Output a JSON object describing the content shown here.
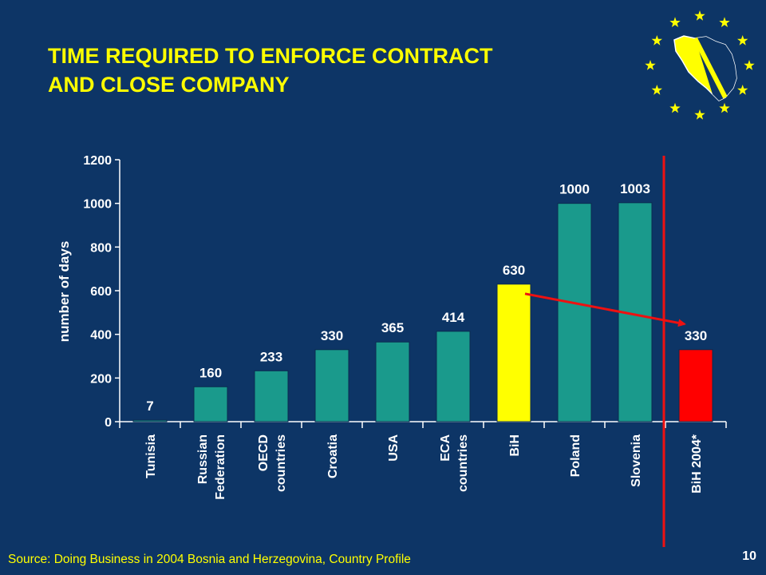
{
  "slide": {
    "title_line1": "TIME REQUIRED TO ENFORCE CONTRACT",
    "title_line2": "AND CLOSE COMPANY",
    "source": "Source: Doing Business in 2004 Bosnia and Herzegovina, Country Profile",
    "page_number": "10"
  },
  "colors": {
    "background": "#0d3566",
    "title": "#ffff00",
    "bar_default": "#1a9a8c",
    "bar_bih": "#ffff00",
    "bar_bih_2004": "#ff0000",
    "arrow": "#ee1111",
    "axis_text": "#ffffff",
    "logo_stars": "#ffff00"
  },
  "logo": {
    "icon": "eu-stars-bosnia-map-icon"
  },
  "chart_data": {
    "type": "bar",
    "ylabel": "number of days",
    "ylim": [
      0,
      1200
    ],
    "yticks": [
      0,
      200,
      400,
      600,
      800,
      1000,
      1200
    ],
    "grid": false,
    "categories": [
      [
        "Tunisia"
      ],
      [
        "Russian",
        "Federation"
      ],
      [
        "OECD",
        "countries"
      ],
      [
        "Croatia"
      ],
      [
        "USA"
      ],
      [
        "ECA",
        "countries"
      ],
      [
        "BiH"
      ],
      [
        "Poland"
      ],
      [
        "Slovenia"
      ],
      [
        "BiH 2004*"
      ]
    ],
    "values": [
      7,
      160,
      233,
      330,
      365,
      414,
      630,
      1000,
      1003,
      330
    ],
    "value_labels": [
      "7",
      "160",
      "233",
      "330",
      "365",
      "414",
      "630",
      "1000",
      "1003",
      "330"
    ],
    "highlight": {
      "BiH": "bar_bih",
      "BiH 2004*": "bar_bih_2004"
    },
    "annotations": [
      {
        "type": "arrow",
        "from_category": 6,
        "to_category": 9
      },
      {
        "type": "vertical-line",
        "between_categories": [
          8,
          9
        ]
      }
    ]
  }
}
